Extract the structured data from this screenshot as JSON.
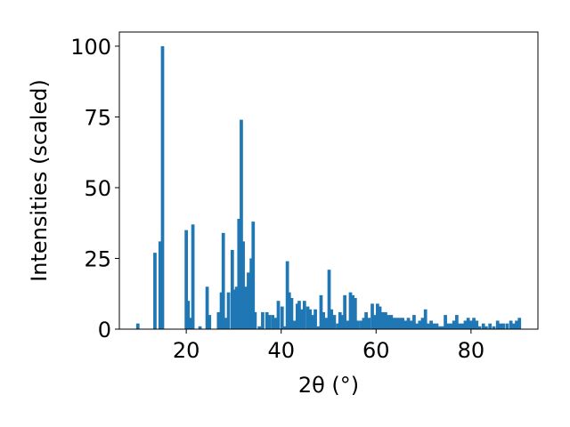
{
  "chart_data": {
    "type": "bar",
    "xlabel": "2θ (°)",
    "ylabel": "Intensities (scaled)",
    "xlim": [
      5.9,
      94.1
    ],
    "ylim": [
      0,
      105
    ],
    "xticks": [
      20,
      40,
      60,
      80
    ],
    "yticks": [
      0,
      25,
      50,
      75,
      100
    ],
    "bar_width": 0.7,
    "bar_color": "#1f77b4",
    "grid": false,
    "x": [
      9.8,
      13.4,
      14.5,
      15.0,
      20.0,
      20.4,
      20.8,
      21.4,
      22.9,
      24.4,
      24.9,
      26.8,
      27.4,
      27.8,
      28.4,
      28.9,
      29.7,
      30.2,
      30.6,
      31.1,
      31.6,
      32.0,
      32.6,
      33.1,
      33.7,
      34.1,
      34.5,
      35.4,
      36.1,
      37.0,
      37.5,
      38.2,
      38.8,
      39.4,
      40.2,
      40.8,
      41.3,
      41.7,
      42.2,
      42.8,
      43.4,
      43.8,
      44.4,
      44.9,
      45.6,
      46.1,
      46.6,
      47.2,
      47.9,
      48.4,
      48.9,
      49.6,
      50.1,
      50.6,
      51.2,
      51.9,
      52.4,
      52.9,
      53.4,
      54.1,
      54.6,
      55.1,
      55.6,
      56.2,
      56.9,
      57.4,
      57.9,
      58.5,
      59.2,
      59.7,
      60.3,
      60.8,
      61.4,
      62.0,
      62.6,
      63.2,
      63.8,
      64.4,
      65.0,
      65.6,
      66.2,
      66.8,
      67.4,
      68.0,
      68.6,
      69.2,
      69.8,
      70.4,
      71.0,
      71.6,
      72.2,
      72.8,
      73.4,
      74.0,
      74.6,
      75.2,
      75.8,
      76.4,
      77.0,
      77.6,
      78.2,
      78.8,
      79.4,
      80.0,
      80.6,
      81.2,
      81.8,
      82.6,
      83.2,
      84.0,
      84.8,
      85.6,
      86.2,
      86.8,
      87.6,
      88.4,
      89.0,
      89.6,
      90.2
    ],
    "values": [
      2,
      27,
      31,
      100,
      35,
      10,
      4,
      37,
      1,
      15,
      5,
      6,
      13,
      34,
      4,
      13,
      28,
      14,
      15,
      39,
      74,
      31,
      15,
      20,
      25,
      38,
      6,
      1,
      6,
      6,
      5,
      5,
      4,
      10,
      8,
      1,
      24,
      13,
      11,
      3,
      9,
      10,
      7,
      10,
      8,
      7,
      5,
      7,
      1,
      12,
      6,
      4,
      21,
      7,
      5,
      2,
      6,
      5,
      12,
      3,
      13,
      12,
      11,
      3,
      3,
      4,
      6,
      4,
      9,
      5,
      9,
      8,
      6,
      6,
      5,
      5,
      4,
      4,
      4,
      4,
      3,
      4,
      3,
      5,
      2,
      3,
      4,
      7,
      2,
      3,
      2,
      2,
      1,
      1,
      5,
      2,
      2,
      3,
      5,
      2,
      2,
      3,
      4,
      3,
      4,
      3,
      1,
      2,
      1,
      2,
      1,
      3,
      2,
      2,
      2,
      3,
      2,
      3,
      4
    ]
  }
}
